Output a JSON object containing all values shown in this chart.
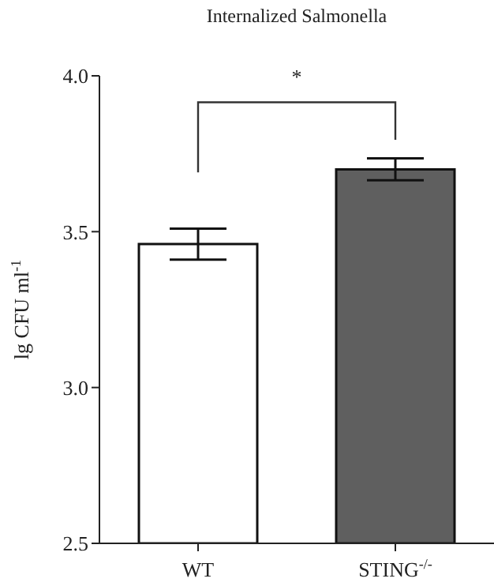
{
  "chart_data": {
    "type": "bar",
    "title": "Internalized Salmonella",
    "ylabel": "lg CFU ml$^{-1}$",
    "categories": [
      "WT",
      "STING$^{-/-}$"
    ],
    "values": [
      3.46,
      3.7
    ],
    "errors": [
      0.05,
      0.035
    ],
    "colors": [
      "#ffffff",
      "#5f5f5f"
    ],
    "ylim": [
      2.5,
      4.0
    ],
    "yticks": [
      2.5,
      {
        "value": 3,
        "label": "3.0"
      },
      3.5,
      {
        "value": 4,
        "label": "4.0"
      }
    ],
    "annotations": [
      "*"
    ]
  }
}
